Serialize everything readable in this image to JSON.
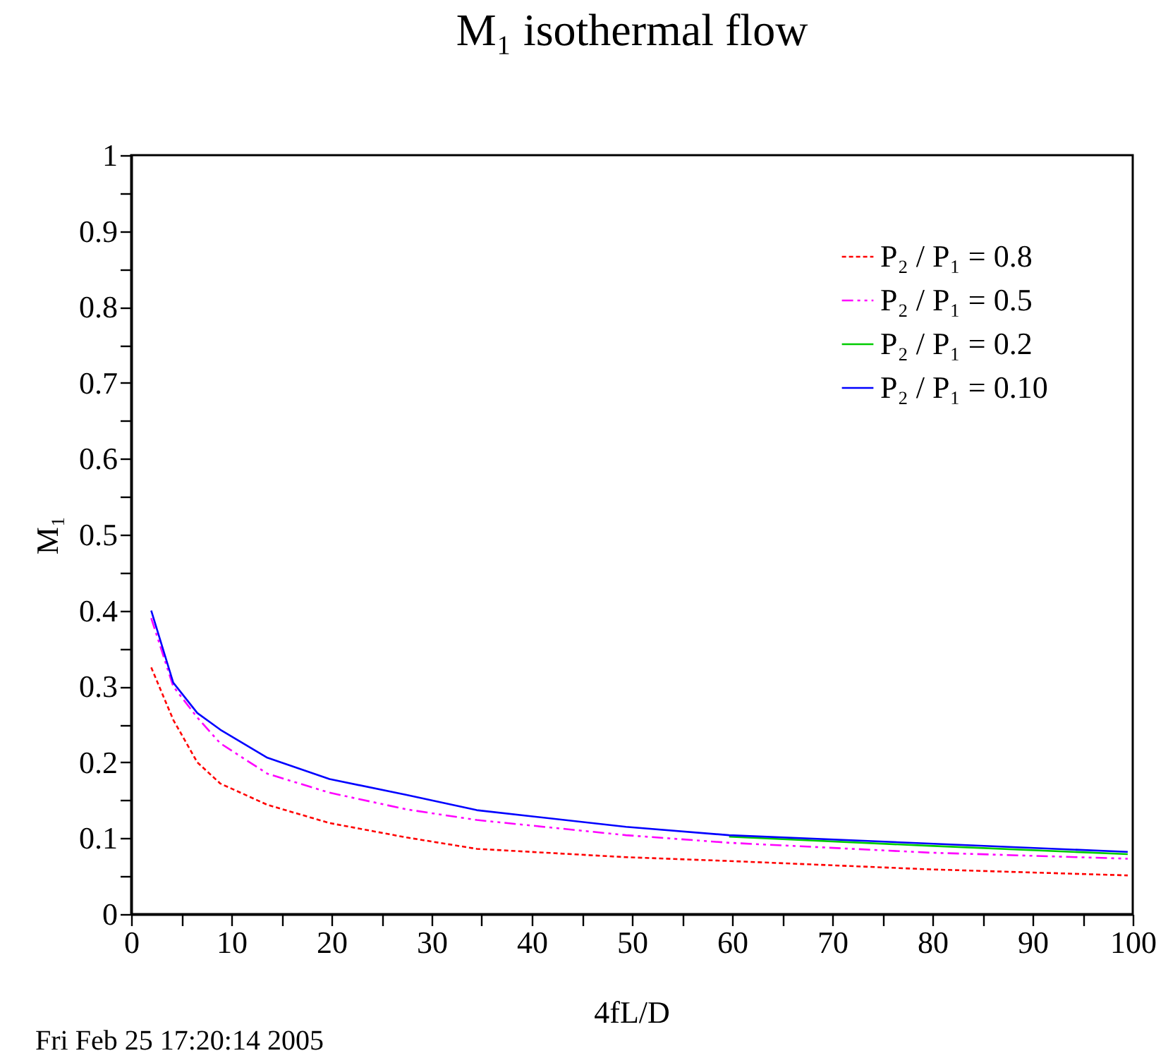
{
  "chart_data": {
    "type": "line",
    "title": "M₁ isothermal flow",
    "xlabel": "4fL/D",
    "ylabel": "M₁",
    "annotations": [
      "Fri Feb 25 17:20:14 2005"
    ],
    "xlim": [
      0,
      100
    ],
    "ylim": [
      0,
      1
    ],
    "xticks": [
      0,
      {
        "value": 5,
        "label": null
      },
      10,
      {
        "value": 15,
        "label": null
      },
      20,
      {
        "value": 25,
        "label": null
      },
      30,
      {
        "value": 35,
        "label": null
      },
      40,
      {
        "value": 45,
        "label": null
      },
      50,
      {
        "value": 55,
        "label": null
      },
      60,
      {
        "value": 65,
        "label": null
      },
      70,
      {
        "value": 75,
        "label": null
      },
      80,
      {
        "value": 85,
        "label": null
      },
      90,
      {
        "value": 95,
        "label": null
      },
      100
    ],
    "yticks": [
      0,
      {
        "value": 0.05,
        "label": null
      },
      0.1,
      {
        "value": 0.15,
        "label": null
      },
      0.2,
      {
        "value": 0.25,
        "label": null
      },
      0.3,
      {
        "value": 0.35,
        "label": null
      },
      0.4,
      {
        "value": 0.45,
        "label": null
      },
      0.5,
      {
        "value": 0.55,
        "label": null
      },
      0.6,
      {
        "value": 0.65,
        "label": null
      },
      0.7,
      {
        "value": 0.75,
        "label": null
      },
      0.8,
      {
        "value": 0.85,
        "label": null
      },
      0.9,
      {
        "value": 0.95,
        "label": null
      },
      1
    ],
    "grid": false,
    "legend": "top right",
    "marker": "none",
    "x": [
      2,
      4.2,
      6.6,
      8.9,
      13.6,
      19.8,
      27.5,
      34.5,
      49.4,
      59.7,
      79.7,
      99.5
    ],
    "series": [
      {
        "name": "P₂ / P₁ = 0.8",
        "color": "#ff0000",
        "line_style": "dotted",
        "values": [
          0.325,
          0.256,
          0.2,
          0.172,
          0.144,
          0.12,
          0.101,
          0.086,
          0.075,
          0.07,
          0.059,
          0.051
        ]
      },
      {
        "name": "P₂ / P₁ = 0.5",
        "color": "#ff00ff",
        "line_style": "dashed",
        "values": [
          0.39,
          0.3,
          0.259,
          0.225,
          0.185,
          0.16,
          0.138,
          0.124,
          0.104,
          0.094,
          0.081,
          0.073
        ]
      },
      {
        "name": "P₂ / P₁ = 0.2",
        "color": "#00cc00",
        "line_style": "solid",
        "values": [
          null,
          null,
          null,
          null,
          null,
          null,
          null,
          null,
          null,
          0.102,
          0.09,
          0.079
        ]
      },
      {
        "name": "P₂ / P₁ = 0.10",
        "color": "#0000ff",
        "line_style": "solid",
        "values": [
          0.4,
          0.305,
          0.265,
          0.243,
          0.206,
          0.178,
          0.157,
          0.137,
          0.115,
          0.104,
          0.093,
          0.082
        ]
      }
    ]
  }
}
